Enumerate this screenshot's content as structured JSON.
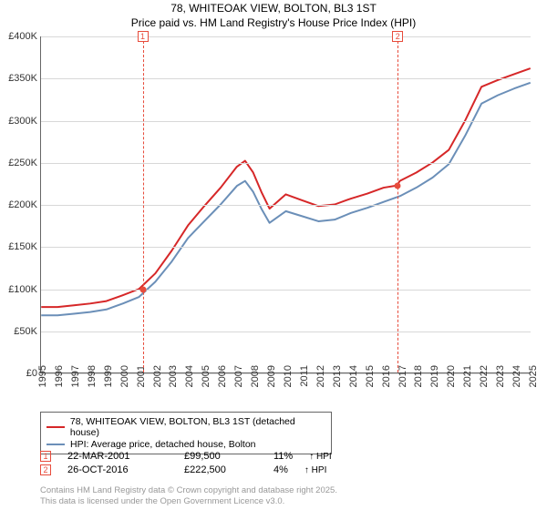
{
  "title_line1": "78, WHITEOAK VIEW, BOLTON, BL3 1ST",
  "title_line2": "Price paid vs. HM Land Registry's House Price Index (HPI)",
  "chart": {
    "type": "line",
    "background_color": "#ffffff",
    "grid_color": "#d8d8d8",
    "axis_color": "#666666",
    "x_min": 1995,
    "x_max": 2025,
    "y_min": 0,
    "y_max": 400000,
    "y_ticks": [
      0,
      50000,
      100000,
      150000,
      200000,
      250000,
      300000,
      350000,
      400000
    ],
    "y_tick_labels": [
      "£0",
      "£50K",
      "£100K",
      "£150K",
      "£200K",
      "£250K",
      "£300K",
      "£350K",
      "£400K"
    ],
    "x_ticks": [
      1995,
      1996,
      1997,
      1998,
      1999,
      2000,
      2001,
      2002,
      2003,
      2004,
      2005,
      2006,
      2007,
      2008,
      2009,
      2010,
      2011,
      2012,
      2013,
      2014,
      2015,
      2016,
      2017,
      2018,
      2019,
      2020,
      2021,
      2022,
      2023,
      2024,
      2025
    ],
    "tick_fontsize": 11,
    "line_width": 2,
    "series": [
      {
        "name": "price_paid",
        "label": "78, WHITEOAK VIEW, BOLTON, BL3 1ST (detached house)",
        "color": "#d62728",
        "x": [
          1995,
          1996,
          1997,
          1998,
          1999,
          2000,
          2001,
          2002,
          2003,
          2004,
          2005,
          2006,
          2007,
          2007.5,
          2008,
          2008.5,
          2009,
          2010,
          2011,
          2012,
          2013,
          2014,
          2015,
          2016,
          2016.8,
          2017,
          2018,
          2019,
          2020,
          2021,
          2022,
          2023,
          2024,
          2025
        ],
        "y": [
          78000,
          78000,
          80000,
          82000,
          85000,
          92000,
          99500,
          118000,
          145000,
          175000,
          198000,
          220000,
          245000,
          252000,
          238000,
          215000,
          195000,
          212000,
          205000,
          198000,
          200000,
          207000,
          213000,
          220000,
          222500,
          228000,
          238000,
          250000,
          265000,
          300000,
          340000,
          348000,
          355000,
          362000
        ]
      },
      {
        "name": "hpi",
        "label": "HPI: Average price, detached house, Bolton",
        "color": "#6b8fb8",
        "x": [
          1995,
          1996,
          1997,
          1998,
          1999,
          2000,
          2001,
          2002,
          2003,
          2004,
          2005,
          2006,
          2007,
          2007.5,
          2008,
          2008.5,
          2009,
          2010,
          2011,
          2012,
          2013,
          2014,
          2015,
          2016,
          2017,
          2018,
          2019,
          2020,
          2021,
          2022,
          2023,
          2024,
          2025
        ],
        "y": [
          68000,
          68000,
          70000,
          72000,
          75000,
          82000,
          90000,
          108000,
          132000,
          160000,
          180000,
          200000,
          222000,
          228000,
          215000,
          195000,
          178000,
          192000,
          186000,
          180000,
          182000,
          190000,
          196000,
          203000,
          210000,
          220000,
          232000,
          248000,
          282000,
          320000,
          330000,
          338000,
          345000
        ]
      }
    ],
    "markers": [
      {
        "n": "1",
        "x": 2001.22,
        "date": "22-MAR-2001",
        "price_y": 99500,
        "price_label": "£99,500",
        "pct": "11%",
        "rel": "↑ HPI"
      },
      {
        "n": "2",
        "x": 2016.82,
        "date": "26-OCT-2016",
        "price_y": 222500,
        "price_label": "£222,500",
        "pct": "4%",
        "rel": "↑ HPI"
      }
    ],
    "marker_line_color": "#e74c3c",
    "marker_dot_color": "#e74c3c"
  },
  "legend": {
    "border_color": "#666666",
    "fontsize": 10.5
  },
  "footnote_line1": "Contains HM Land Registry data © Crown copyright and database right 2025.",
  "footnote_line2": "This data is licensed under the Open Government Licence v3.0."
}
